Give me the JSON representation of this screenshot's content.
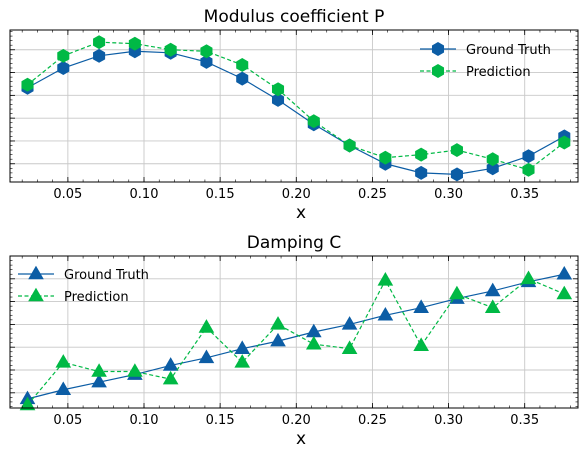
{
  "chart_data": [
    {
      "type": "line",
      "title": "Modulus coefficient P",
      "xlabel": "x",
      "ylabel": "",
      "xlim": [
        0.012,
        0.385
      ],
      "ylim": [
        0.0,
        1.0
      ],
      "x_ticks": [
        "0.05",
        "0.10",
        "0.15",
        "0.20",
        "0.25",
        "0.30",
        "0.35"
      ],
      "x_tick_values": [
        0.05,
        0.1,
        0.15,
        0.2,
        0.25,
        0.3,
        0.35
      ],
      "y_tick_values": [
        0.12,
        0.27,
        0.42,
        0.57,
        0.72,
        0.87
      ],
      "grid": true,
      "legend": "upper right",
      "x": [
        0.0235,
        0.047,
        0.0705,
        0.094,
        0.1175,
        0.141,
        0.1645,
        0.188,
        0.2115,
        0.235,
        0.2585,
        0.282,
        0.3055,
        0.329,
        0.3525,
        0.376
      ],
      "series": [
        {
          "name": "Ground Truth",
          "color": "#0c5da5",
          "marker": "hexagon",
          "linestyle": "solid",
          "values": [
            0.62,
            0.75,
            0.83,
            0.86,
            0.85,
            0.79,
            0.68,
            0.54,
            0.38,
            0.24,
            0.12,
            0.06,
            0.05,
            0.09,
            0.17,
            0.3
          ]
        },
        {
          "name": "Prediction",
          "color": "#00b945",
          "marker": "hexagon",
          "linestyle": "dashed",
          "values": [
            0.64,
            0.83,
            0.92,
            0.91,
            0.87,
            0.86,
            0.77,
            0.61,
            0.4,
            0.24,
            0.16,
            0.18,
            0.21,
            0.15,
            0.08,
            0.26
          ]
        }
      ]
    },
    {
      "type": "line",
      "title": "Damping C",
      "xlabel": "x",
      "ylabel": "",
      "xlim": [
        0.012,
        0.385
      ],
      "ylim": [
        0.0,
        1.0
      ],
      "x_ticks": [
        "0.05",
        "0.10",
        "0.15",
        "0.20",
        "0.25",
        "0.30",
        "0.35"
      ],
      "x_tick_values": [
        0.05,
        0.1,
        0.15,
        0.2,
        0.25,
        0.3,
        0.35
      ],
      "y_tick_values": [
        0.1,
        0.25,
        0.4,
        0.55,
        0.7,
        0.85
      ],
      "grid": true,
      "legend": "upper left",
      "x": [
        0.0235,
        0.047,
        0.0705,
        0.094,
        0.1175,
        0.141,
        0.1645,
        0.188,
        0.2115,
        0.235,
        0.2585,
        0.282,
        0.3055,
        0.329,
        0.3525,
        0.376
      ],
      "series": [
        {
          "name": "Ground Truth",
          "color": "#0c5da5",
          "marker": "triangle",
          "linestyle": "solid",
          "values": [
            0.06,
            0.12,
            0.17,
            0.22,
            0.28,
            0.33,
            0.39,
            0.44,
            0.5,
            0.55,
            0.61,
            0.66,
            0.72,
            0.77,
            0.83,
            0.88
          ]
        },
        {
          "name": "Prediction",
          "color": "#00b945",
          "marker": "triangle",
          "linestyle": "dashed",
          "values": [
            0.02,
            0.3,
            0.24,
            0.24,
            0.19,
            0.53,
            0.3,
            0.55,
            0.42,
            0.39,
            0.84,
            0.41,
            0.75,
            0.66,
            0.85,
            0.75
          ]
        }
      ]
    }
  ]
}
